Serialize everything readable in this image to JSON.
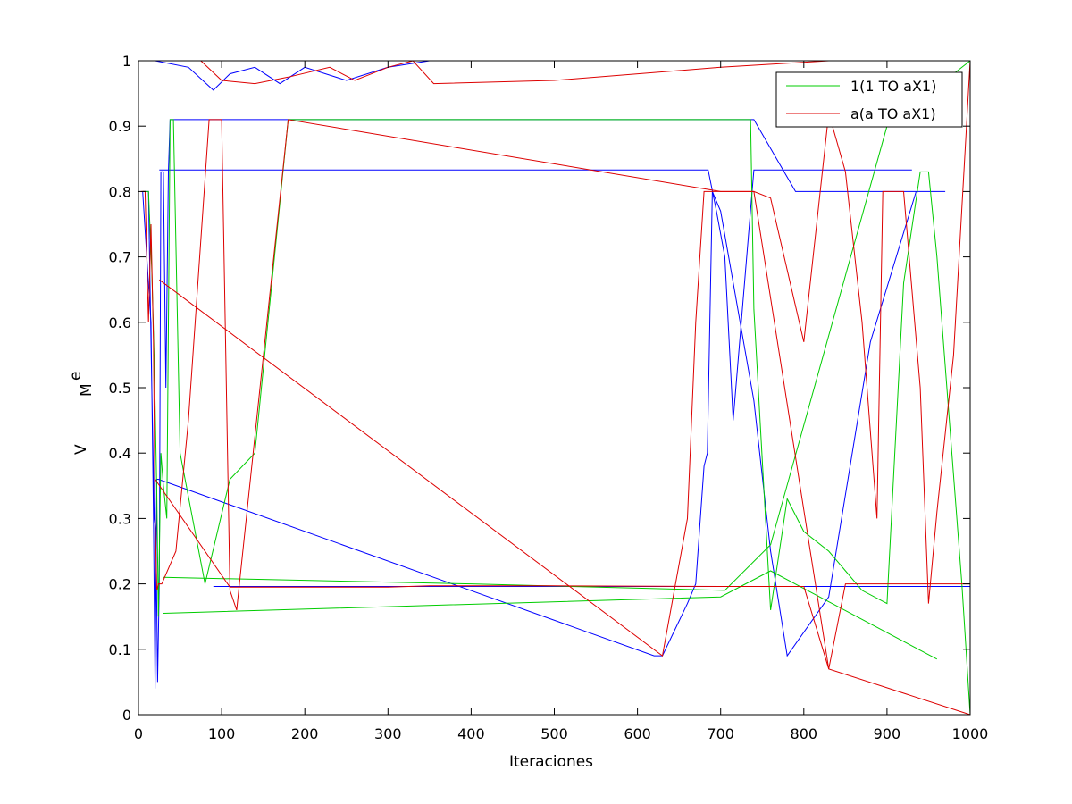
{
  "chart_data": {
    "type": "line",
    "title": "",
    "xlabel": "Iteraciones",
    "ylabel": "V",
    "ylabel_sub": "M",
    "ylabel_sup": "e",
    "xlim": [
      0,
      1000
    ],
    "ylim": [
      0,
      1
    ],
    "xticks": [
      "0",
      "100",
      "200",
      "300",
      "400",
      "500",
      "600",
      "700",
      "800",
      "900",
      "1000"
    ],
    "yticks": [
      "0",
      "0.1",
      "0.2",
      "0.3",
      "0.4",
      "0.5",
      "0.6",
      "0.7",
      "0.8",
      "0.9",
      "1"
    ],
    "grid": false,
    "legend_position": "top-right",
    "series": [
      {
        "name": "",
        "color": "#0000ff",
        "in_legend": false,
        "x": [
          5,
          12,
          16,
          19,
          21,
          23,
          25,
          27,
          30,
          33,
          36,
          38,
          40,
          60,
          90,
          300,
          700,
          740,
          790,
          800,
          870,
          890,
          900,
          920,
          940,
          960,
          970,
          935,
          880,
          830,
          780,
          760,
          740,
          700,
          690,
          684,
          680,
          670,
          660,
          630,
          620,
          24,
          22,
          20,
          18,
          15,
          10,
          5
        ],
        "y": [
          0.8,
          0.8,
          0.5,
          0.3,
          0.28,
          0.05,
          0.2,
          0.83,
          0.83,
          0.5,
          0.83,
          0.91,
          0.91,
          0.91,
          0.91,
          0.91,
          0.91,
          0.91,
          0.8,
          0.8,
          0.8,
          0.8,
          0.8,
          0.8,
          0.8,
          0.8,
          0.8,
          0.8,
          0.57,
          0.18,
          0.09,
          0.25,
          0.48,
          0.77,
          0.8,
          0.4,
          0.38,
          0.2,
          0.17,
          0.09,
          0.09,
          0.36,
          0.36,
          0.04,
          0.3,
          0.6,
          0.7,
          0.8
        ]
      },
      {
        "name": "",
        "color": "#0000ff",
        "in_legend": false,
        "x": [
          25,
          45,
          200,
          400,
          600,
          685,
          695,
          705,
          715,
          740,
          760,
          900,
          930
        ],
        "y": [
          0.833,
          0.833,
          0.833,
          0.833,
          0.833,
          0.833,
          0.77,
          0.7,
          0.45,
          0.833,
          0.833,
          0.833,
          0.833
        ]
      },
      {
        "name": "",
        "color": "#0000ff",
        "in_legend": false,
        "x": [
          20,
          60,
          90,
          110,
          140,
          170,
          200,
          250,
          300,
          350,
          400,
          450,
          505
        ],
        "y": [
          1.0,
          0.99,
          0.955,
          0.98,
          0.99,
          0.965,
          0.99,
          0.97,
          0.99,
          1.0,
          1.0,
          1.0,
          1.0
        ]
      },
      {
        "name": "",
        "color": "#0000ff",
        "in_legend": false,
        "x": [
          90,
          840,
          1000
        ],
        "y": [
          0.196,
          0.196,
          0.196
        ]
      },
      {
        "name": "1(1 TO aX1)",
        "color": "#00cc00",
        "in_legend": true,
        "x": [
          5,
          12,
          16,
          19,
          22,
          24,
          27,
          30,
          34,
          38,
          42,
          50,
          80,
          110,
          140,
          180,
          700,
          736,
          740,
          760,
          780,
          800,
          830,
          850,
          870,
          900,
          920,
          940,
          950,
          960,
          975,
          990,
          1000
        ],
        "y": [
          0.8,
          0.8,
          0.68,
          0.54,
          0.34,
          0.15,
          0.4,
          0.35,
          0.3,
          0.91,
          0.91,
          0.4,
          0.2,
          0.36,
          0.4,
          0.91,
          0.91,
          0.91,
          0.62,
          0.16,
          0.33,
          0.28,
          0.25,
          0.22,
          0.19,
          0.17,
          0.66,
          0.83,
          0.83,
          0.7,
          0.45,
          0.2,
          0.0
        ]
      },
      {
        "name": "",
        "color": "#00cc00",
        "in_legend": false,
        "x": [
          30,
          700,
          760,
          960
        ],
        "y": [
          0.155,
          0.18,
          0.22,
          0.085
        ]
      },
      {
        "name": "",
        "color": "#00cc00",
        "in_legend": false,
        "x": [
          30,
          400,
          705,
          760,
          900,
          1000
        ],
        "y": [
          0.21,
          0.2,
          0.19,
          0.26,
          0.9,
          1.0
        ]
      },
      {
        "name": "a(a TO aX1)",
        "color": "#dd0000",
        "in_legend": true,
        "x": [
          3,
          8,
          12,
          15,
          18,
          20,
          22,
          24,
          28,
          45,
          60,
          85,
          100,
          110,
          118,
          180,
          700,
          740,
          760,
          800,
          830,
          850,
          870,
          888,
          895,
          905,
          920,
          940,
          950,
          960,
          980,
          1000
        ],
        "y": [
          0.8,
          0.8,
          0.6,
          0.75,
          0.57,
          0.3,
          0.19,
          0.2,
          0.2,
          0.25,
          0.45,
          0.91,
          0.91,
          0.19,
          0.16,
          0.91,
          0.8,
          0.8,
          0.79,
          0.57,
          0.92,
          0.83,
          0.6,
          0.3,
          0.8,
          0.8,
          0.8,
          0.5,
          0.17,
          0.31,
          0.55,
          1.0
        ]
      },
      {
        "name": "",
        "color": "#dd0000",
        "in_legend": false,
        "x": [
          25,
          630,
          660,
          670,
          680,
          700,
          740,
          830,
          850,
          1000
        ],
        "y": [
          0.665,
          0.09,
          0.3,
          0.6,
          0.8,
          0.8,
          0.8,
          0.07,
          0.2,
          0.2
        ]
      },
      {
        "name": "",
        "color": "#dd0000",
        "in_legend": false,
        "x": [
          20,
          110,
          200,
          300,
          350,
          500,
          700,
          800,
          830,
          1000
        ],
        "y": [
          0.36,
          0.195,
          0.195,
          0.195,
          0.197,
          0.197,
          0.196,
          0.196,
          0.07,
          0.0
        ]
      },
      {
        "name": "",
        "color": "#dd0000",
        "in_legend": false,
        "x": [
          75,
          100,
          140,
          180,
          230,
          260,
          300,
          330,
          355,
          500,
          700,
          830
        ],
        "y": [
          1.0,
          0.97,
          0.965,
          0.975,
          0.99,
          0.97,
          0.99,
          1.0,
          0.965,
          0.97,
          0.99,
          1.0
        ]
      }
    ]
  }
}
